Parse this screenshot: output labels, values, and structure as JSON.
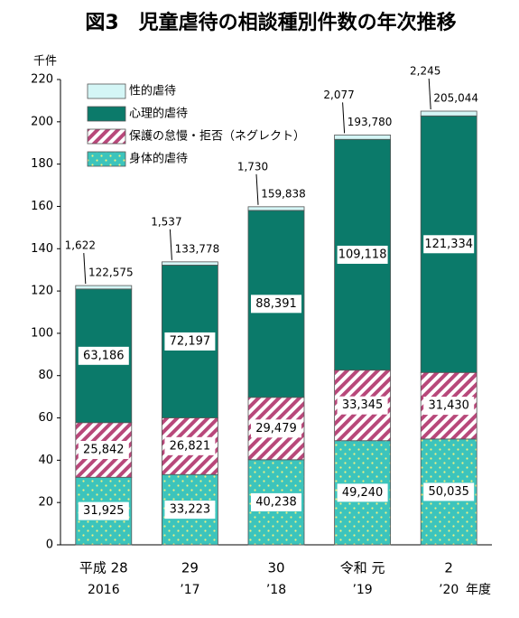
{
  "chart_data": {
    "type": "stacked_bar",
    "title": "図3　児童虐待の相談種別件数の年次推移",
    "y_unit": "千件",
    "categories": [
      "平成 28",
      "29",
      "30",
      "令和 元",
      "2"
    ],
    "category_years": [
      "2016",
      "’17",
      "’18",
      "’19",
      "’20"
    ],
    "x_unit": "年度",
    "ylim": [
      0,
      220
    ],
    "yticks": [
      0,
      20,
      40,
      60,
      80,
      100,
      120,
      140,
      160,
      180,
      200,
      220
    ],
    "grid": false,
    "legend": "upper left",
    "series": [
      {
        "name": "身体的虐待",
        "color": "#3cc4bc",
        "pattern": "dots",
        "values": [
          31.925,
          33.223,
          40.238,
          49.24,
          50.035
        ],
        "value_labels": [
          "31,925",
          "33,223",
          "40,238",
          "49,240",
          "50,035"
        ]
      },
      {
        "name": "保護の怠慢・拒否（ネグレクト）",
        "color": "#b8487a",
        "pattern": "stripes",
        "values": [
          25.842,
          26.821,
          29.479,
          33.345,
          31.43
        ],
        "value_labels": [
          "25,842",
          "26,821",
          "29,479",
          "33,345",
          "31,430"
        ]
      },
      {
        "name": "心理的虐待",
        "color": "#0b7a6a",
        "pattern": "solid",
        "values": [
          63.186,
          72.197,
          88.391,
          109.118,
          121.334
        ],
        "value_labels": [
          "63,186",
          "72,197",
          "88,391",
          "109,118",
          "121,334"
        ]
      },
      {
        "name": "性的虐待",
        "color": "#d4f6f6",
        "pattern": "solid",
        "values": [
          1.622,
          1.537,
          1.73,
          2.077,
          2.245
        ],
        "value_labels": [
          "1,622",
          "1,537",
          "1,730",
          "2,077",
          "2,245"
        ]
      }
    ],
    "totals": [
      {
        "value": 122.575,
        "label": "122,575"
      },
      {
        "value": 133.778,
        "label": "133,778"
      },
      {
        "value": 159.838,
        "label": "159,838"
      },
      {
        "value": 193.78,
        "label": "193,780"
      },
      {
        "value": 205.044,
        "label": "205,044"
      }
    ]
  }
}
